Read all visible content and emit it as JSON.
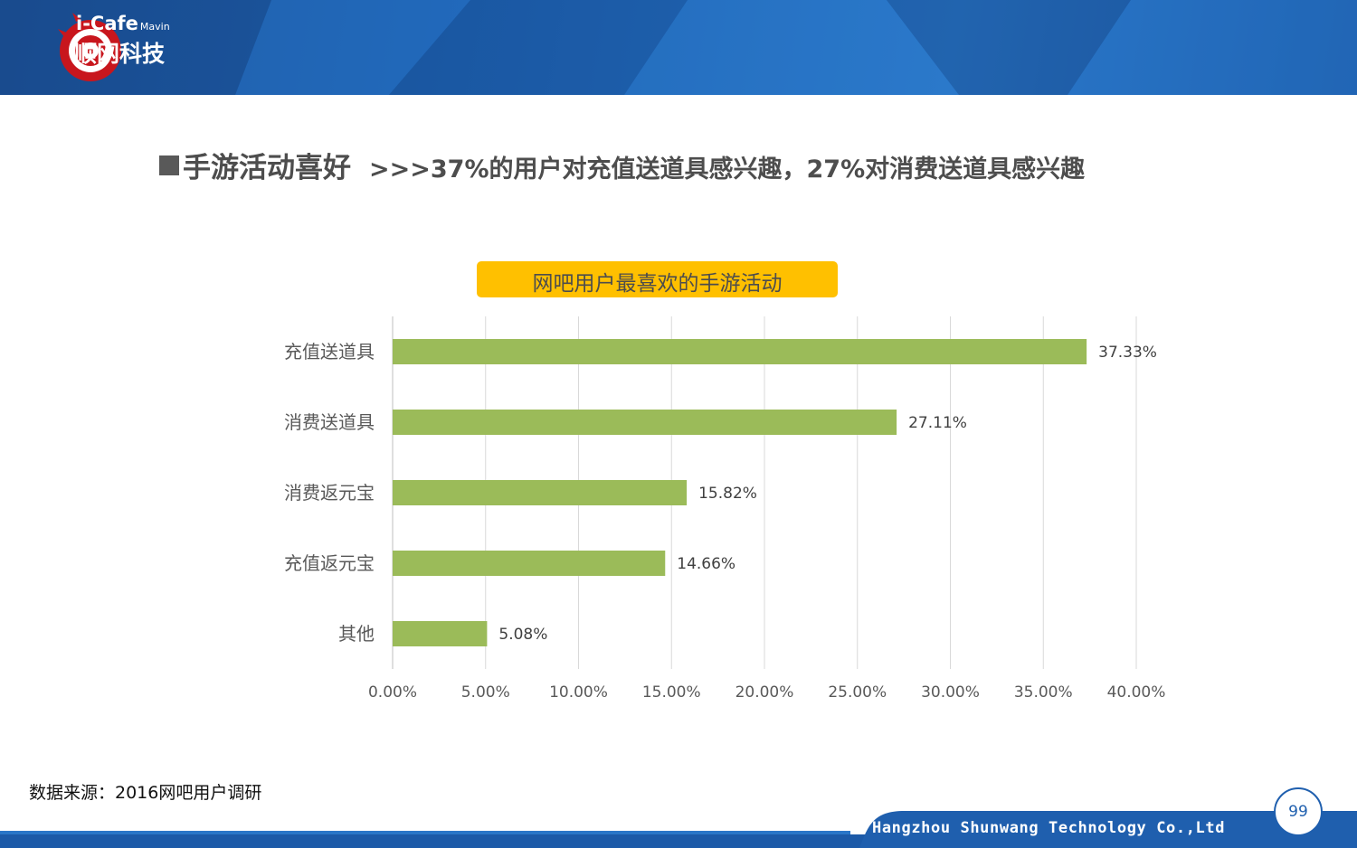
{
  "logo": {
    "brand_en": "i-Cafe",
    "brand_mavin": "Mavin",
    "brand_cn": "顺网科技"
  },
  "title": {
    "main": "手游活动喜好",
    "sub": ">>>37%的用户对充值送道具感兴趣，27%对消费送道具感兴趣"
  },
  "chart_data": {
    "type": "bar",
    "orientation": "horizontal",
    "title": "网吧用户最喜欢的手游活动",
    "categories": [
      "充值送道具",
      "消费送道具",
      "消费返元宝",
      "充值返元宝",
      "其他"
    ],
    "values": [
      37.33,
      27.11,
      15.82,
      14.66,
      5.08
    ],
    "value_labels": [
      "37.33%",
      "27.11%",
      "15.82%",
      "14.66%",
      "5.08%"
    ],
    "xlim": [
      0,
      40
    ],
    "xticks": [
      0,
      5,
      10,
      15,
      20,
      25,
      30,
      35,
      40
    ],
    "xtick_labels": [
      "0.00%",
      "5.00%",
      "10.00%",
      "15.00%",
      "20.00%",
      "25.00%",
      "30.00%",
      "35.00%",
      "40.00%"
    ],
    "bar_color": "#9bbb59",
    "grid": true
  },
  "source": "数据来源：2016网吧用户调研",
  "footer": {
    "company": "Hangzhou Shunwang Technology Co.,Ltd",
    "page_number": "99"
  }
}
